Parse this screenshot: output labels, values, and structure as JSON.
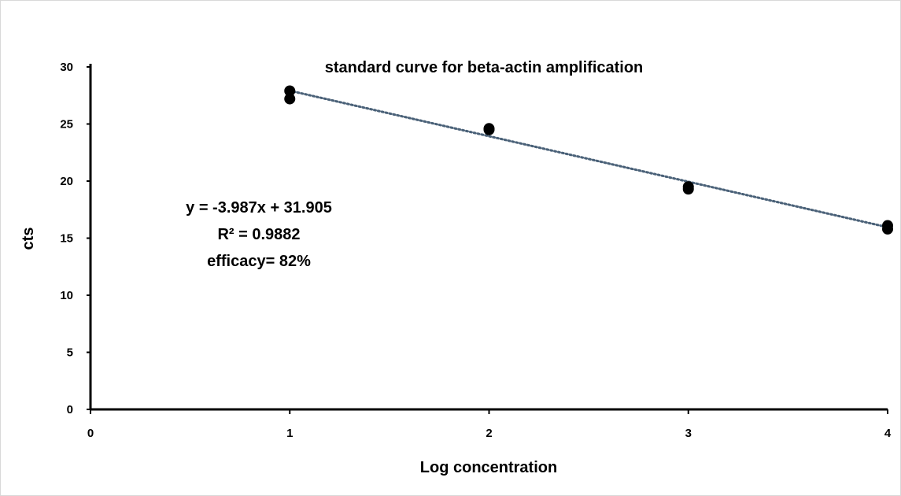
{
  "chart_data": {
    "type": "scatter",
    "title": "standard curve for beta-actin amplification",
    "xlabel": "Log concentration",
    "ylabel": "cts",
    "xlim": [
      0,
      4
    ],
    "ylim": [
      0,
      30
    ],
    "x_ticks": [
      "0",
      "1",
      "2",
      "3",
      "4"
    ],
    "y_ticks": [
      "0",
      "5",
      "10",
      "15",
      "20",
      "25",
      "30"
    ],
    "grid": false,
    "legend": "none",
    "series": [
      {
        "points": [
          {
            "x": 1,
            "y": 27.9
          },
          {
            "x": 1,
            "y": 27.2
          },
          {
            "x": 2,
            "y": 24.6
          },
          {
            "x": 2,
            "y": 24.5
          },
          {
            "x": 3,
            "y": 19.5
          },
          {
            "x": 3,
            "y": 19.3
          },
          {
            "x": 4,
            "y": 16.1
          },
          {
            "x": 4,
            "y": 15.8
          }
        ],
        "color": "#000000"
      }
    ],
    "trendline": {
      "type": "linear",
      "slope": -3.987,
      "intercept": 31.905,
      "x_range": [
        1,
        4
      ],
      "color": "#4a6178",
      "style": "dotted"
    },
    "annotations": [
      "y = -3.987x + 31.905",
      "R² = 0.9882",
      "efficacy= 82%"
    ]
  }
}
